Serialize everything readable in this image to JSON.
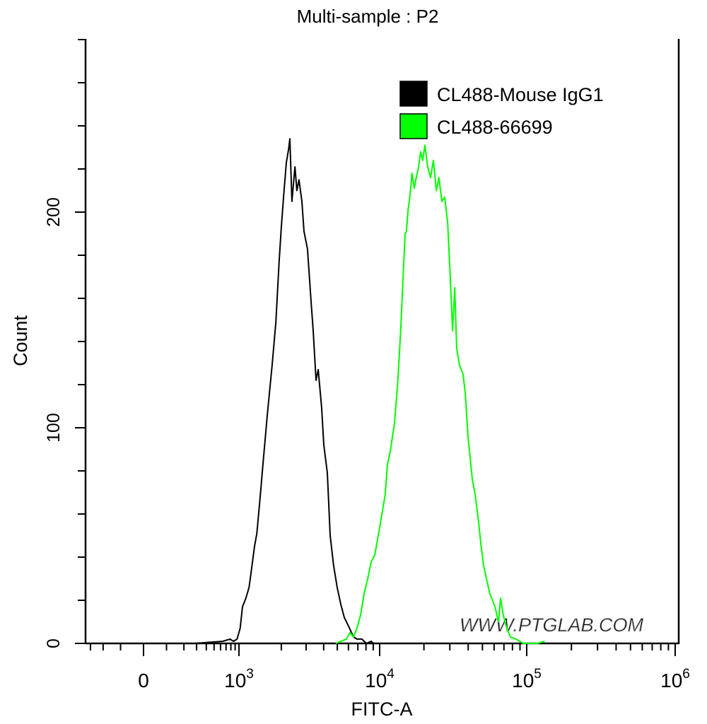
{
  "chart_data": {
    "type": "line",
    "title": "Multi-sample : P2",
    "xlabel": "FITC-A",
    "ylabel": "Count",
    "x_scale": "biexponential",
    "xlim": [
      -350,
      1000000
    ],
    "ylim": [
      0,
      282
    ],
    "x_tick_labels": [
      {
        "value": 0,
        "base": "0",
        "exp": ""
      },
      {
        "value": 1000,
        "base": "10",
        "exp": "3"
      },
      {
        "value": 10000,
        "base": "10",
        "exp": "4"
      },
      {
        "value": 100000,
        "base": "10",
        "exp": "5"
      },
      {
        "value": 1000000,
        "base": "10",
        "exp": "6"
      }
    ],
    "y_tick_labels": [
      {
        "value": 0,
        "label": "0"
      },
      {
        "value": 100,
        "label": "100"
      },
      {
        "value": 200,
        "label": "200"
      }
    ],
    "y_minor_step": 20,
    "grid": false,
    "legend_placement": "top-right",
    "watermark": "WWW.PTGLAB.COM",
    "series": [
      {
        "name": "CL488-Mouse IgG1",
        "color": "#000000",
        "points": [
          [
            282,
            0
          ],
          [
            640,
            1
          ],
          [
            780,
            2
          ],
          [
            860,
            1
          ],
          [
            948,
            2
          ],
          [
            1020,
            7
          ],
          [
            1060,
            17
          ],
          [
            1120,
            21
          ],
          [
            1180,
            26
          ],
          [
            1220,
            33
          ],
          [
            1290,
            45
          ],
          [
            1340,
            51
          ],
          [
            1420,
            69
          ],
          [
            1480,
            83
          ],
          [
            1590,
            106
          ],
          [
            1720,
            129
          ],
          [
            1830,
            149
          ],
          [
            1930,
            177
          ],
          [
            2000,
            193
          ],
          [
            2080,
            208
          ],
          [
            2170,
            223
          ],
          [
            2250,
            229
          ],
          [
            2300,
            234
          ],
          [
            2380,
            205
          ],
          [
            2500,
            221
          ],
          [
            2580,
            210
          ],
          [
            2670,
            215
          ],
          [
            2800,
            205
          ],
          [
            2900,
            191
          ],
          [
            3070,
            183
          ],
          [
            3260,
            158
          ],
          [
            3370,
            145
          ],
          [
            3530,
            122
          ],
          [
            3660,
            127
          ],
          [
            3870,
            109
          ],
          [
            4010,
            92
          ],
          [
            4250,
            79
          ],
          [
            4450,
            50
          ],
          [
            4710,
            36
          ],
          [
            4990,
            26
          ],
          [
            5300,
            18
          ],
          [
            5610,
            12
          ],
          [
            6010,
            8
          ],
          [
            6520,
            3
          ],
          [
            6900,
            2
          ],
          [
            7480,
            2
          ],
          [
            8040,
            0
          ],
          [
            8710,
            1
          ],
          [
            9020,
            0
          ]
        ]
      },
      {
        "name": "CL488-66699",
        "color": "#00ff00",
        "points": [
          [
            4880,
            0
          ],
          [
            5800,
            2
          ],
          [
            6150,
            5
          ],
          [
            6520,
            3
          ],
          [
            6900,
            7
          ],
          [
            7310,
            13
          ],
          [
            7750,
            23
          ],
          [
            8220,
            30
          ],
          [
            8710,
            38
          ],
          [
            9230,
            41
          ],
          [
            9770,
            50
          ],
          [
            10300,
            59
          ],
          [
            10900,
            69
          ],
          [
            11300,
            83
          ],
          [
            11800,
            89
          ],
          [
            12600,
            102
          ],
          [
            13300,
            122
          ],
          [
            13900,
            145
          ],
          [
            14400,
            168
          ],
          [
            14900,
            190
          ],
          [
            15200,
            191
          ],
          [
            15600,
            201
          ],
          [
            16100,
            208
          ],
          [
            16600,
            218
          ],
          [
            17200,
            211
          ],
          [
            17600,
            215
          ],
          [
            18400,
            221
          ],
          [
            19000,
            228
          ],
          [
            19600,
            224
          ],
          [
            20300,
            231
          ],
          [
            21200,
            221
          ],
          [
            22200,
            216
          ],
          [
            23200,
            224
          ],
          [
            24300,
            210
          ],
          [
            25300,
            216
          ],
          [
            26500,
            205
          ],
          [
            27700,
            207
          ],
          [
            29000,
            195
          ],
          [
            30300,
            168
          ],
          [
            31300,
            145
          ],
          [
            32400,
            165
          ],
          [
            33400,
            137
          ],
          [
            34900,
            129
          ],
          [
            36900,
            125
          ],
          [
            38200,
            116
          ],
          [
            39900,
            96
          ],
          [
            42700,
            76
          ],
          [
            44600,
            69
          ],
          [
            47100,
            56
          ],
          [
            48800,
            46
          ],
          [
            50900,
            36
          ],
          [
            53200,
            30
          ],
          [
            56200,
            23
          ],
          [
            60800,
            17
          ],
          [
            64300,
            10
          ],
          [
            66400,
            21
          ],
          [
            69300,
            13
          ],
          [
            73300,
            7
          ],
          [
            77400,
            3
          ],
          [
            84700,
            2
          ],
          [
            94600,
            0
          ],
          [
            118000,
            0
          ],
          [
            132000,
            1
          ]
        ]
      }
    ]
  }
}
